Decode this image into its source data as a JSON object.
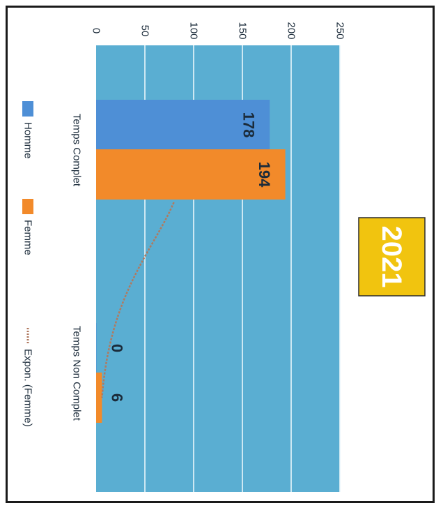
{
  "chart_data": {
    "type": "bar",
    "title": "2021",
    "categories": [
      "Temps Complet",
      "Temps Non Complet"
    ],
    "series": [
      {
        "name": "Homme",
        "values": [
          178,
          0
        ]
      },
      {
        "name": "Femme",
        "values": [
          194,
          6
        ]
      }
    ],
    "trendline": {
      "name": "Expon. (Femme)",
      "type": "exponential",
      "series": "Femme"
    },
    "ylim": [
      0,
      250
    ],
    "yticks": [
      0,
      50,
      100,
      150,
      200,
      250
    ],
    "grid": true,
    "legend": "bottom",
    "orientation": "rotated-90-clockwise",
    "colors": {
      "plot_bg": "#5aaed2",
      "grid": "#eaf6fb",
      "homme": "#4e8fd6",
      "femme": "#f28a2a",
      "trend": "#b07a60",
      "title_bg": "#f1c40f",
      "title_text": "#ffffff",
      "label_text": "#1b2b3a",
      "axis_text": "#1b2b3a"
    }
  }
}
